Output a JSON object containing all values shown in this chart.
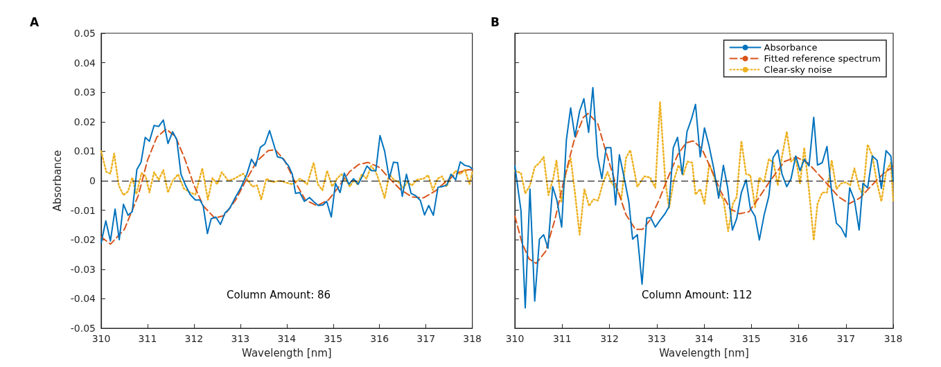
{
  "chart_data": [
    {
      "type": "line",
      "title": "A",
      "xlabel": "Wavelength [nm]",
      "ylabel": "Absorbance",
      "xlim": [
        310,
        318
      ],
      "xticks": [
        310,
        311,
        312,
        313,
        314,
        315,
        316,
        317,
        318
      ],
      "ylim": [
        -0.05,
        0.05
      ],
      "yticks": [
        -0.05,
        -0.04,
        -0.03,
        -0.02,
        -0.01,
        0,
        0.01,
        0.02,
        0.03,
        0.04,
        0.05
      ],
      "grid": false,
      "legend": false,
      "annotations": [
        "Column Amount: 86"
      ],
      "ref_lines": [
        {
          "axis": "y",
          "value": 0,
          "color": "#000000",
          "line_style": "dashed"
        }
      ],
      "series": [
        {
          "color": "#0072bd",
          "line_style": "solid",
          "x": [
            310.0,
            310.1,
            310.2,
            310.3,
            310.39,
            310.48,
            310.58,
            310.67,
            310.77,
            310.86,
            310.95,
            311.04,
            311.14,
            311.24,
            311.34,
            311.44,
            311.54,
            311.63,
            311.72,
            311.82,
            311.92,
            312.03,
            312.13,
            312.2,
            312.29,
            312.37,
            312.47,
            312.57,
            312.67,
            312.77,
            312.87,
            313.01,
            313.14,
            313.24,
            313.33,
            313.43,
            313.53,
            313.63,
            313.8,
            313.9,
            314.04,
            314.12,
            314.19,
            314.28,
            314.38,
            314.49,
            314.59,
            314.68,
            314.78,
            314.86,
            314.96,
            315.05,
            315.15,
            315.24,
            315.34,
            315.44,
            315.54,
            315.64,
            315.73,
            315.83,
            315.92,
            316.01,
            316.11,
            316.21,
            316.3,
            316.39,
            316.49,
            316.58,
            316.68,
            316.78,
            316.88,
            316.97,
            317.06,
            317.16,
            317.26,
            317.35,
            317.45,
            317.54,
            317.64,
            317.74,
            317.84,
            317.94,
            318.0
          ],
          "values": [
            -0.021,
            -0.0136,
            -0.0204,
            -0.0096,
            -0.02,
            -0.008,
            -0.0117,
            -0.0105,
            0.0038,
            0.0063,
            0.0147,
            0.0134,
            0.0187,
            0.0184,
            0.0206,
            0.0126,
            0.0166,
            0.0139,
            0.0022,
            -0.0016,
            -0.0047,
            -0.0065,
            -0.0065,
            -0.0086,
            -0.0179,
            -0.0129,
            -0.0123,
            -0.0148,
            -0.0109,
            -0.0094,
            -0.0063,
            -0.0024,
            0.0022,
            0.0073,
            0.005,
            0.0113,
            0.0125,
            0.017,
            0.0081,
            0.0077,
            0.005,
            0.0022,
            -0.0043,
            -0.004,
            -0.007,
            -0.0057,
            -0.0072,
            -0.0084,
            -0.0082,
            -0.007,
            -0.0123,
            -0.0009,
            -0.004,
            0.0026,
            -0.0012,
            0.0007,
            -0.0012,
            0.0019,
            0.005,
            0.0034,
            0.0034,
            0.0153,
            0.01,
            0.0007,
            0.0063,
            0.0061,
            -0.0053,
            0.0022,
            -0.0043,
            -0.0051,
            -0.0067,
            -0.0116,
            -0.0084,
            -0.0117,
            -0.0022,
            -0.002,
            -0.0015,
            0.0022,
            0.0003,
            0.0064,
            0.0052,
            0.0048,
            0.004
          ]
        },
        {
          "color": "#d95319",
          "line_style": "dashed",
          "x": [
            310.0,
            310.2,
            310.5,
            310.8,
            311.0,
            311.2,
            311.4,
            311.6,
            311.8,
            312.0,
            312.2,
            312.45,
            312.65,
            312.9,
            313.1,
            313.35,
            313.6,
            313.75,
            313.95,
            314.15,
            314.4,
            314.65,
            314.9,
            315.1,
            315.35,
            315.55,
            315.75,
            316.0,
            316.2,
            316.45,
            316.7,
            316.95,
            317.2,
            317.45,
            317.7,
            317.9,
            318.0
          ],
          "values": [
            -0.019,
            -0.0215,
            -0.0165,
            -0.005,
            0.007,
            0.0148,
            0.0175,
            0.015,
            0.0075,
            -0.0015,
            -0.0085,
            -0.0127,
            -0.0118,
            -0.0065,
            -0.0005,
            0.0065,
            0.0102,
            0.0105,
            0.007,
            0.0005,
            -0.0065,
            -0.0085,
            -0.0065,
            -0.0025,
            0.003,
            0.0055,
            0.0062,
            0.0045,
            0.001,
            -0.003,
            -0.0055,
            -0.0058,
            -0.0035,
            0.0,
            0.0028,
            0.0037,
            0.0037
          ]
        },
        {
          "color": "#edb120",
          "line_style": "dotted",
          "x": [
            310.0,
            310.11,
            310.2,
            310.28,
            310.38,
            310.48,
            310.58,
            310.67,
            310.76,
            310.87,
            310.96,
            311.04,
            311.14,
            311.24,
            311.34,
            311.44,
            311.54,
            311.66,
            311.78,
            311.92,
            312.03,
            312.18,
            312.3,
            312.4,
            312.5,
            312.6,
            312.74,
            312.87,
            313.06,
            313.26,
            313.36,
            313.45,
            313.56,
            313.7,
            313.84,
            314.12,
            314.29,
            314.44,
            314.58,
            314.67,
            314.77,
            314.87,
            314.98,
            315.08,
            315.18,
            315.28,
            315.36,
            315.45,
            315.52,
            315.62,
            315.72,
            315.82,
            315.92,
            316.01,
            316.11,
            316.21,
            316.31,
            316.41,
            316.51,
            316.6,
            316.7,
            316.8,
            316.95,
            317.05,
            317.15,
            317.25,
            317.35,
            317.44,
            317.54,
            317.64,
            317.74,
            317.84,
            317.94,
            318.0
          ],
          "values": [
            0.01,
            0.003,
            0.0024,
            0.0092,
            -0.0016,
            -0.0049,
            -0.0036,
            0.0011,
            -0.0046,
            0.0026,
            0.0015,
            -0.004,
            0.0029,
            0.0003,
            0.0036,
            -0.004,
            0.0,
            0.0022,
            -0.0026,
            -0.004,
            -0.0047,
            0.0042,
            -0.0064,
            0.0009,
            -0.0012,
            0.0029,
            0.0,
            0.0007,
            0.0024,
            -0.002,
            -0.0016,
            -0.0064,
            0.0007,
            -0.0005,
            0.0,
            -0.0012,
            0.0007,
            -0.0012,
            0.0061,
            -0.0012,
            -0.0032,
            0.0034,
            -0.002,
            0.0007,
            0.0022,
            0.0003,
            -0.002,
            0.0003,
            -0.0012,
            0.0022,
            0.0007,
            0.005,
            0.003,
            -0.0009,
            -0.0059,
            0.0022,
            0.0003,
            -0.0005,
            -0.0024,
            -0.0005,
            -0.0016,
            0.0003,
            0.0007,
            0.0019,
            -0.0032,
            0.0007,
            0.0015,
            -0.002,
            0.0011,
            0.0034,
            0.0022,
            0.0038,
            -0.0012,
            0.003
          ]
        }
      ]
    },
    {
      "type": "line",
      "title": "B",
      "xlabel": "Wavelength [nm]",
      "xlim": [
        310,
        318
      ],
      "xticks": [
        310,
        311,
        312,
        313,
        314,
        315,
        316,
        317,
        318
      ],
      "ylim": [
        -0.05,
        0.05
      ],
      "yticks": [
        -0.05,
        -0.04,
        -0.03,
        -0.02,
        -0.01,
        0,
        0.01,
        0.02,
        0.03,
        0.04,
        0.05
      ],
      "tick_labels": "x",
      "grid": false,
      "legend": "top right",
      "annotations": [
        "Column Amount: 112"
      ],
      "ref_lines": [
        {
          "axis": "y",
          "value": 0,
          "color": "#000000",
          "line_style": "dashed"
        }
      ],
      "series": [
        {
          "name": "Absorbance",
          "color": "#0072bd",
          "line_style": "solid",
          "x": [
            310.0,
            310.13,
            310.22,
            310.32,
            310.42,
            310.52,
            310.61,
            310.7,
            310.8,
            310.89,
            310.99,
            311.09,
            311.18,
            311.27,
            311.37,
            311.46,
            311.56,
            311.65,
            311.75,
            311.84,
            311.93,
            312.03,
            312.13,
            312.21,
            312.31,
            312.41,
            312.49,
            312.59,
            312.69,
            312.79,
            312.87,
            312.97,
            313.07,
            313.17,
            313.26,
            313.35,
            313.44,
            313.54,
            313.64,
            313.74,
            313.82,
            313.92,
            314.01,
            314.11,
            314.21,
            314.31,
            314.41,
            314.5,
            314.6,
            314.69,
            314.79,
            314.89,
            314.98,
            315.08,
            315.17,
            315.27,
            315.37,
            315.46,
            315.56,
            315.65,
            315.75,
            315.84,
            315.94,
            316.03,
            316.12,
            316.22,
            316.32,
            316.4,
            316.5,
            316.6,
            316.7,
            316.8,
            316.9,
            317.0,
            317.08,
            317.18,
            317.28,
            317.36,
            317.46,
            317.56,
            317.66,
            317.75,
            317.85,
            317.95,
            318.0
          ],
          "values": [
            0.005,
            -0.0102,
            -0.0431,
            -0.0028,
            -0.0408,
            -0.0198,
            -0.0183,
            -0.0229,
            -0.002,
            -0.0067,
            -0.0157,
            0.0139,
            0.0247,
            0.015,
            0.0236,
            0.0278,
            0.0164,
            0.0316,
            0.0081,
            0.0007,
            0.0112,
            0.0112,
            -0.0082,
            0.0088,
            0.0011,
            -0.0071,
            -0.0198,
            -0.0183,
            -0.0351,
            -0.0126,
            -0.0125,
            -0.0157,
            -0.0134,
            -0.0113,
            -0.0088,
            0.0112,
            0.0147,
            0.0022,
            0.0166,
            0.0212,
            0.0259,
            0.0081,
            0.0179,
            0.0116,
            0.0038,
            -0.0059,
            0.0052,
            -0.0024,
            -0.0167,
            -0.0129,
            -0.004,
            0.0003,
            -0.0094,
            -0.0121,
            -0.0201,
            -0.0117,
            -0.0053,
            0.0078,
            0.0104,
            0.0022,
            -0.002,
            0.0007,
            0.0084,
            0.0034,
            0.0073,
            0.005,
            0.0215,
            0.0053,
            0.0061,
            0.0116,
            -0.004,
            -0.0144,
            -0.016,
            -0.0191,
            -0.0024,
            -0.0065,
            -0.0167,
            -0.0009,
            -0.0024,
            0.0084,
            0.0069,
            -0.0026,
            0.0102,
            0.0084,
            0.0
          ]
        },
        {
          "name": "Fitted reference spectrum",
          "color": "#d95319",
          "line_style": "dashed",
          "x": [
            310.0,
            310.15,
            310.3,
            310.45,
            310.65,
            310.85,
            311.05,
            311.25,
            311.45,
            311.55,
            311.75,
            311.95,
            312.15,
            312.35,
            312.55,
            312.7,
            312.85,
            313.05,
            313.25,
            313.45,
            313.62,
            313.77,
            313.95,
            314.15,
            314.35,
            314.55,
            314.75,
            314.95,
            315.15,
            315.4,
            315.7,
            315.95,
            316.2,
            316.4,
            316.6,
            316.85,
            317.07,
            317.3,
            317.55,
            317.8,
            318.0
          ],
          "values": [
            -0.012,
            -0.021,
            -0.0265,
            -0.028,
            -0.024,
            -0.013,
            0.001,
            0.0135,
            0.0215,
            0.0228,
            0.0195,
            0.0085,
            -0.002,
            -0.0115,
            -0.0165,
            -0.0165,
            -0.0135,
            -0.0065,
            0.0015,
            0.009,
            0.0128,
            0.0135,
            0.011,
            0.004,
            -0.0035,
            -0.0095,
            -0.0112,
            -0.0105,
            -0.006,
            0.0,
            0.0065,
            0.008,
            0.006,
            0.0025,
            -0.001,
            -0.0055,
            -0.0078,
            -0.0058,
            -0.0015,
            0.0025,
            0.0048
          ]
        },
        {
          "name": "Clear-sky noise",
          "color": "#edb120",
          "line_style": "dotted",
          "x": [
            310.0,
            310.13,
            310.22,
            310.32,
            310.42,
            310.52,
            310.61,
            310.71,
            310.81,
            310.88,
            310.98,
            311.08,
            311.18,
            311.27,
            311.37,
            311.47,
            311.57,
            311.66,
            311.76,
            311.86,
            311.96,
            312.05,
            312.15,
            312.25,
            312.35,
            312.44,
            312.59,
            312.74,
            312.86,
            312.97,
            313.07,
            313.18,
            313.26,
            313.36,
            313.46,
            313.56,
            313.65,
            313.75,
            313.82,
            313.92,
            314.01,
            314.11,
            314.21,
            314.31,
            314.41,
            314.51,
            314.61,
            314.69,
            314.79,
            314.89,
            314.98,
            315.08,
            315.17,
            315.27,
            315.37,
            315.47,
            315.56,
            315.65,
            315.75,
            315.84,
            315.94,
            316.03,
            316.12,
            316.22,
            316.32,
            316.4,
            316.5,
            316.6,
            316.7,
            316.8,
            316.9,
            317.0,
            317.09,
            317.18,
            317.28,
            317.36,
            317.46,
            317.56,
            317.66,
            317.75,
            317.85,
            317.95,
            318.0
          ],
          "values": [
            0.0034,
            0.0026,
            -0.0043,
            -0.0016,
            0.0046,
            0.0061,
            0.0081,
            -0.0049,
            0.0007,
            0.0069,
            -0.0074,
            0.0026,
            0.0077,
            -0.004,
            -0.0183,
            -0.0028,
            -0.0086,
            -0.0063,
            -0.0067,
            -0.0009,
            0.003,
            -0.0009,
            -0.0024,
            -0.0063,
            0.0077,
            0.0104,
            -0.002,
            0.0015,
            0.0011,
            -0.0024,
            0.0267,
            0.0003,
            -0.0094,
            0.0,
            0.0053,
            0.0019,
            0.0065,
            0.0061,
            -0.0047,
            -0.0028,
            -0.0078,
            0.0057,
            0.0015,
            -0.004,
            -0.0063,
            -0.0171,
            -0.0078,
            -0.0055,
            0.0135,
            0.0022,
            0.0019,
            -0.009,
            0.0011,
            -0.0005,
            0.0073,
            0.0061,
            -0.0016,
            0.0084,
            0.0166,
            0.0065,
            0.0077,
            -0.0009,
            0.0112,
            -0.0032,
            -0.0202,
            -0.0078,
            -0.004,
            -0.004,
            0.0069,
            -0.0028,
            -0.0009,
            -0.0005,
            -0.0016,
            0.0042,
            -0.0024,
            -0.0047,
            0.0123,
            0.0084,
            -0.0009,
            -0.007,
            0.003,
            0.0061,
            -0.0067
          ]
        }
      ]
    }
  ]
}
